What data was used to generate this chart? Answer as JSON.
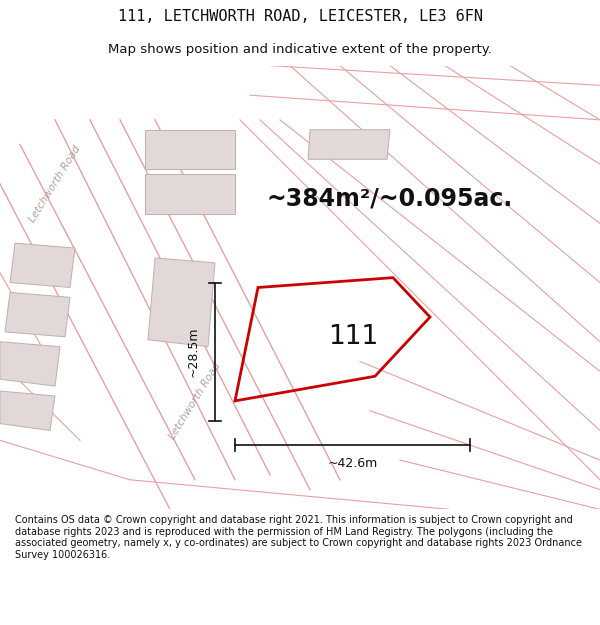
{
  "title": "111, LETCHWORTH ROAD, LEICESTER, LE3 6FN",
  "subtitle": "Map shows position and indicative extent of the property.",
  "area_text": "~384m²/~0.095ac.",
  "property_number": "111",
  "dim_width": "~42.6m",
  "dim_height": "~28.5m",
  "road_label1": "Letchworth Road",
  "road_label2": "Letchworth Road",
  "footer": "Contains OS data © Crown copyright and database right 2021. This information is subject to Crown copyright and database rights 2023 and is reproduced with the permission of HM Land Registry. The polygons (including the associated geometry, namely x, y co-ordinates) are subject to Crown copyright and database rights 2023 Ordnance Survey 100026316.",
  "map_bg": "#f5eeee",
  "building_fill": "#e2d8d8",
  "building_edge": "#bfafaf",
  "road_line_color": "#e8a0a0",
  "property_outline_color": "#cc0000",
  "dimension_color": "#111111",
  "text_color": "#111111",
  "road_label_color": "#b0a0a0",
  "title_fontsize": 11,
  "subtitle_fontsize": 9.5,
  "area_fontsize": 17,
  "number_fontsize": 19,
  "footer_fontsize": 7.0,
  "road_lw": 1.0,
  "prop_lw": 2.0
}
